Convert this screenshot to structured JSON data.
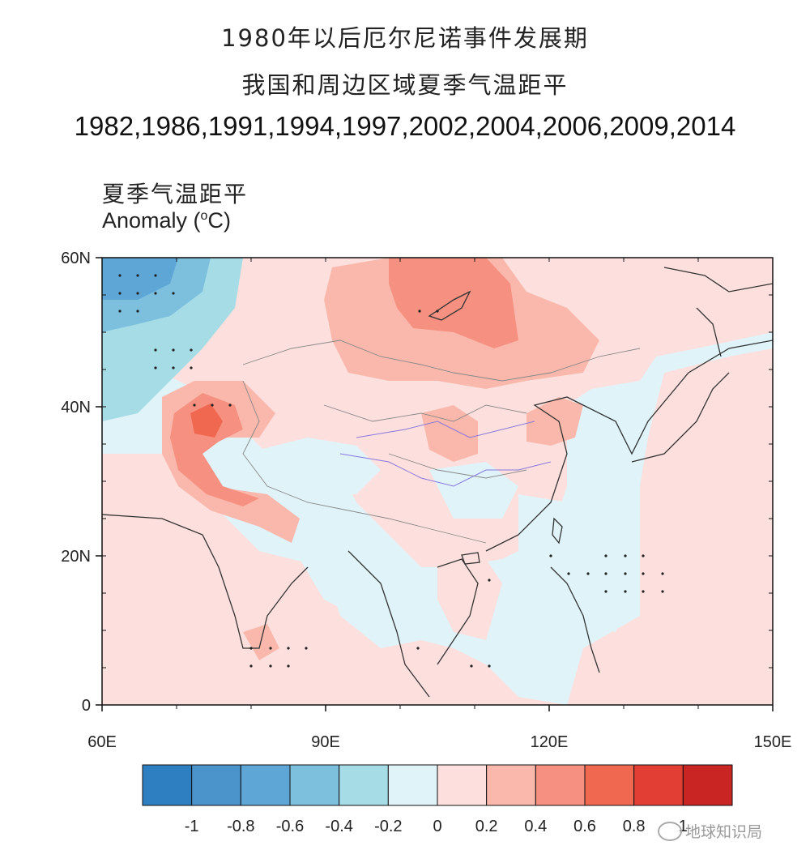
{
  "title": {
    "line1": "1980年以后厄尔尼诺事件发展期",
    "line2": "我国和周边区域夏季气温距平",
    "line3": "1982,1986,1991,1994,1997,2002,2004,2006,2009,2014"
  },
  "subtitle": {
    "cn": "夏季气温距平",
    "en_prefix": "Anomaly (",
    "en_sup": "o",
    "en_suffix": "C)"
  },
  "map": {
    "lon_range": [
      60,
      150
    ],
    "lat_range": [
      0,
      60
    ],
    "y_ticks": [
      {
        "label": "60N",
        "lat": 60
      },
      {
        "label": "40N",
        "lat": 40
      },
      {
        "label": "20N",
        "lat": 20
      },
      {
        "label": "0",
        "lat": 0
      }
    ],
    "x_ticks": [
      {
        "label": "60E",
        "lon": 60
      },
      {
        "label": "90E",
        "lon": 90
      },
      {
        "label": "120E",
        "lon": 120
      },
      {
        "label": "150E",
        "lon": 150
      }
    ],
    "background_color": "#dff3f9"
  },
  "colorbar": {
    "colors": [
      "#2d7fc1",
      "#4a93cb",
      "#5ea6d6",
      "#7cc0de",
      "#a6dce6",
      "#dff3f9",
      "#fde0de",
      "#f9b8ab",
      "#f69080",
      "#f06850",
      "#e23e33",
      "#c82523"
    ],
    "labels": [
      "-1",
      "-0.8",
      "-0.6",
      "-0.4",
      "-0.2",
      "0",
      "0.2",
      "0.4",
      "0.6",
      "0.8",
      "1"
    ]
  },
  "watermark": {
    "text": "地球知识局",
    "icon": "wechat-icon"
  }
}
